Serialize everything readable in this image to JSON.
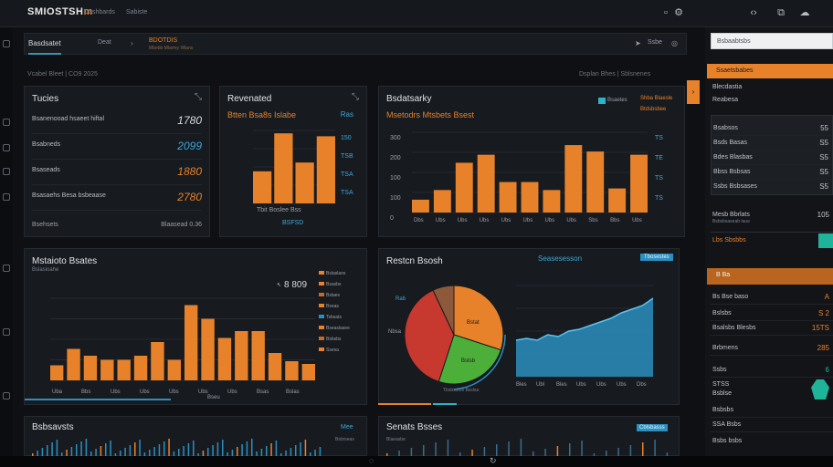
{
  "app": {
    "logo": "SMIOSTSH",
    "logo_accent": "m",
    "nav": [
      "Dashbards",
      "Sabiste"
    ]
  },
  "topbar_icons": [
    "chevron-left-icon",
    "expand-icon",
    "cloud-icon"
  ],
  "subbar": {
    "tab_active": "Basdsatet",
    "tab_mid": "Deat",
    "tab_orange": "BDOTDIS",
    "tab_orange_sub": "Mbebb Mlarmy Wlans",
    "send_label": "Ssbe"
  },
  "breadcrumb_left": "Vcabel Bleet  |  CO9 2025",
  "breadcrumb_right": "Dsplan Bhes  |  Sblsnenes",
  "tickers": {
    "title": "Tucies",
    "rows": [
      {
        "label": "Bsanenooad hsaeet hiftal",
        "value": "1780",
        "color": "#d9dde2"
      },
      {
        "label": "Bsabneds",
        "value": "2099",
        "color": "#3fa7d6"
      },
      {
        "label": "Bsaseads",
        "value": "1880",
        "color": "#e8822a"
      },
      {
        "label": "Bsasaehs Besa bsbeaase",
        "value": "2780",
        "color": "#e8822a"
      }
    ],
    "footer_left": "Bsehsets",
    "footer_right": "Blaasead  0.36"
  },
  "revenue": {
    "title": "Revenated",
    "subtitle": "Btten Bsa8s Islabe",
    "subtitle_right": "Ras",
    "footer": "Tbit  Boslee  Bss",
    "footer_sub": "BSFSD"
  },
  "breakdown": {
    "title": "Bsdatsarky",
    "subtitle": "Msetodrs Mtsbets Bsest",
    "legend": [
      {
        "label": "Bsaetes",
        "color": "#2bb3c8"
      },
      {
        "label": "Shba Blaesle",
        "color": "#e8822a"
      },
      {
        "label": "Btdsbsbee",
        "color": "#e8822a"
      }
    ],
    "x_labels": [
      "Dbs",
      "Ubs",
      "Ubs",
      "Ubs",
      "Ubs",
      "Ubs",
      "Ubs",
      "Ubs",
      "Sbs",
      "Bbs",
      "Ubs"
    ]
  },
  "markets": {
    "title": "Mstaioto Bsates",
    "subtitle": "Bslasioahe",
    "headline_value": "8 809",
    "legend": [
      "Bslaslaos",
      "Bsasbs",
      "Bslaes",
      "Bseas",
      "Tsbsats",
      "Bseaslasee",
      "Bsbsbs",
      "Ssesa"
    ],
    "x_labels": [
      "Uba",
      "Bbs",
      "Ubs",
      "Ubs",
      "Ubs",
      "Ubs",
      "Ubs",
      "Bsas",
      "Bslas"
    ],
    "footer": "Bseu"
  },
  "breakdown2": {
    "title": "Restcn Bsosh",
    "pie_label_left": "Nbsa",
    "pie_label_top": "Rab",
    "pie_label_right": "Bstat",
    "pie_label_bottom": "Bstsb",
    "pie_footer": "Tbsbsotos Bsslsa",
    "area_title": "Seasesesson",
    "area_label": "Tbosestes",
    "area_x": [
      "Bles",
      "Ubl",
      "Bles",
      "Ubs",
      "Ubs",
      "Ubs",
      "Dbs"
    ]
  },
  "bottom_left": {
    "title": "Bsbsavsts",
    "badge": "Mee",
    "sub": "Bsbrseas"
  },
  "bottom_right": {
    "title": "Senats Bsses",
    "badge": "Cblsbasss",
    "sub": "Blaeasbe"
  },
  "rightpanel": {
    "search": "Bsbaabtsbs",
    "orange1": "Ssaetsbabes",
    "rows_top": [
      {
        "label": "Blecdastia",
        "value": ""
      },
      {
        "label": "Reabesa",
        "value": ""
      }
    ],
    "card_rows": [
      {
        "label": "Bsabsos",
        "value": "55"
      },
      {
        "label": "Bsds Basas",
        "value": "S5"
      },
      {
        "label": "Bdes Blasbas",
        "value": "S5"
      },
      {
        "label": "Bbss Bsbsas",
        "value": "S5"
      },
      {
        "label": "Ssbs Bsbsases",
        "value": "S5"
      }
    ],
    "mid_label": "Mesb Bbrlats",
    "mid_value": "105",
    "mid_sub": "Bsbsbsaseab laue",
    "orange_row": "Lbs  Sbsbbs",
    "dark_row": "B Ba",
    "rows_bottom": [
      {
        "label": "Bs Bse baso",
        "value": "A"
      },
      {
        "label": "Bslsbs",
        "value": "S 2"
      },
      {
        "label": "Bsalsbs Blesbs",
        "value": "15TS"
      },
      {
        "label": "Brbmens",
        "value": "285"
      },
      {
        "label": "Ssbs",
        "value": "6"
      },
      {
        "label": "STSS",
        "value": ""
      },
      {
        "label": "Bsblse",
        "value": ""
      },
      {
        "label": "Bsbsbs",
        "value": ""
      },
      {
        "label": "SSA Bsbs",
        "value": ""
      },
      {
        "label": "Bsbs bsbs",
        "value": ""
      }
    ]
  },
  "chart_data": [
    {
      "type": "bar",
      "title": "Revenated",
      "values": [
        2.2,
        4.8,
        2.8,
        4.6
      ],
      "ylim": [
        0,
        5
      ],
      "yticks": [
        "150",
        "TSB",
        "TSA",
        "TSA"
      ]
    },
    {
      "type": "bar",
      "title": "Bsdatsarky",
      "values": [
        0.8,
        1.4,
        3.1,
        3.6,
        1.9,
        1.9,
        1.4,
        4.2,
        3.8,
        1.5,
        3.6
      ],
      "ylim": [
        0,
        5
      ],
      "yticks": [
        "300",
        "200",
        "100",
        "100",
        "0"
      ]
    },
    {
      "type": "bar",
      "title": "Mstaioto Bsates",
      "values": [
        1.1,
        2.3,
        1.8,
        1.5,
        1.5,
        1.8,
        2.8,
        1.5,
        5.5,
        4.5,
        3.1,
        3.6,
        3.6,
        2.0,
        1.4,
        1.2
      ],
      "ylim": [
        0,
        6
      ]
    },
    {
      "type": "pie",
      "slices": [
        {
          "label": "Rab",
          "value": 30,
          "color": "#e8822a"
        },
        {
          "label": "Bstat",
          "value": 25,
          "color": "#4caf3a"
        },
        {
          "label": "Nbsa",
          "value": 38,
          "color": "#c7392f"
        },
        {
          "label": "Bstsb",
          "value": 7,
          "color": "#8c5a3a"
        }
      ]
    },
    {
      "type": "area",
      "values": [
        2.0,
        2.1,
        2.0,
        2.3,
        2.2,
        2.5,
        2.6,
        2.8,
        3.0,
        3.2,
        3.5,
        3.7,
        3.9,
        4.3
      ],
      "ylim": [
        0,
        5
      ],
      "color": "#2b8fbf"
    }
  ]
}
